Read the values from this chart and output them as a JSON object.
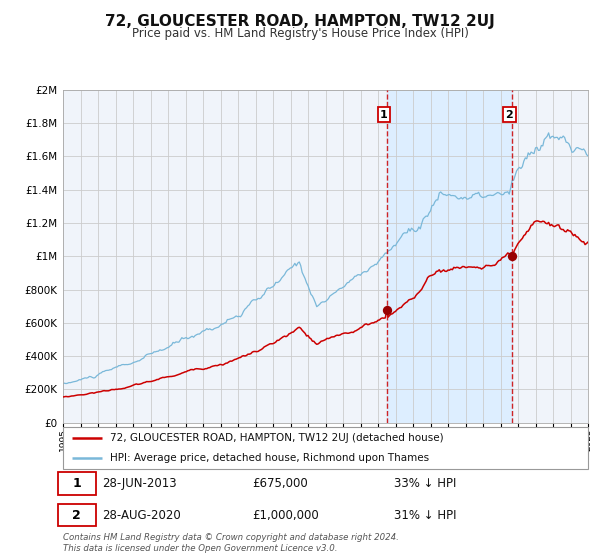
{
  "title": "72, GLOUCESTER ROAD, HAMPTON, TW12 2UJ",
  "subtitle": "Price paid vs. HM Land Registry's House Price Index (HPI)",
  "legend_line1": "72, GLOUCESTER ROAD, HAMPTON, TW12 2UJ (detached house)",
  "legend_line2": "HPI: Average price, detached house, Richmond upon Thames",
  "sale1_date": 2013.49,
  "sale1_price": 675000,
  "sale1_label": "1",
  "sale1_text": "28-JUN-2013",
  "sale1_price_str": "£675,000",
  "sale1_pct": "33% ↓ HPI",
  "sale2_date": 2020.66,
  "sale2_price": 1000000,
  "sale2_label": "2",
  "sale2_text": "28-AUG-2020",
  "sale2_price_str": "£1,000,000",
  "sale2_pct": "31% ↓ HPI",
  "hpi_color": "#7ab8d9",
  "price_color": "#cc0000",
  "sale_dot_color": "#990000",
  "shade_color": "#ddeeff",
  "grid_color": "#cccccc",
  "bg_color": "#ffffff",
  "plot_bg_color": "#f0f4fa",
  "ymin": 0,
  "ymax": 2000000,
  "xmin": 1995,
  "xmax": 2025,
  "footnote1": "Contains HM Land Registry data © Crown copyright and database right 2024.",
  "footnote2": "This data is licensed under the Open Government Licence v3.0."
}
